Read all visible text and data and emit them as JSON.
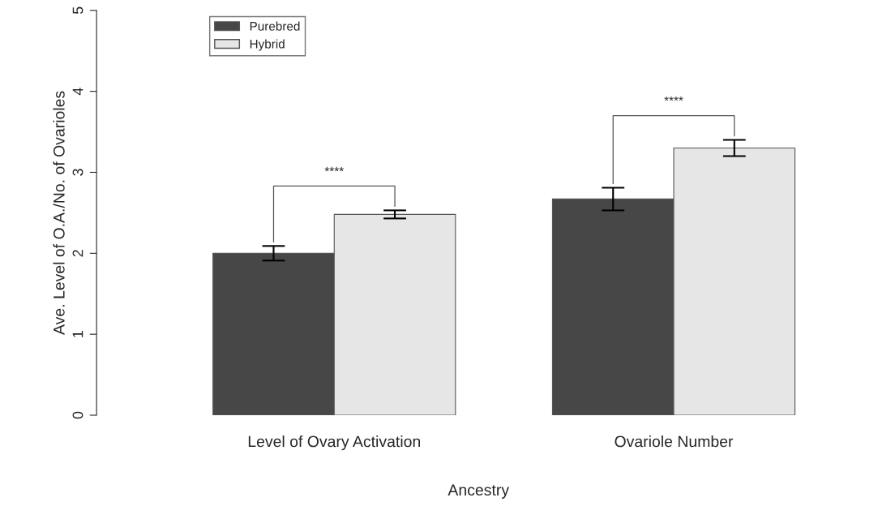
{
  "chart_data": {
    "type": "bar",
    "xlabel": "Ancestry",
    "ylabel": "Ave. Level of O.A./No. of Ovarioles",
    "categories": [
      "Level of Ovary Activation",
      "Ovariole Number"
    ],
    "series": [
      {
        "name": "Purebred",
        "color": "#474747",
        "values": [
          2.0,
          2.67
        ],
        "errors": [
          0.09,
          0.14
        ]
      },
      {
        "name": "Hybrid",
        "color": "#e6e6e6",
        "values": [
          2.48,
          3.3
        ],
        "errors": [
          0.05,
          0.1
        ]
      }
    ],
    "ylim": [
      0,
      5
    ],
    "yticks": [
      0,
      1,
      2,
      3,
      4,
      5
    ],
    "grid": false,
    "legend": "top left",
    "annotations": [
      "****",
      "****"
    ]
  }
}
